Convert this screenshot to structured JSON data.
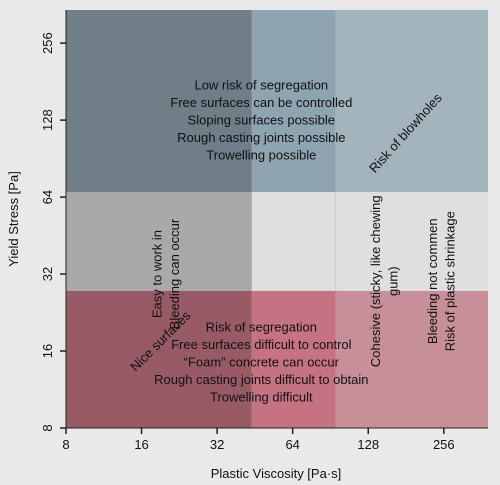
{
  "chart_data": {
    "type": "region",
    "x_axis": {
      "label": "Plastic Viscosity [Pa·s]",
      "scale": "log2",
      "ticks": [
        8,
        16,
        32,
        64,
        128,
        256
      ],
      "range": [
        8,
        384
      ]
    },
    "y_axis": {
      "label": "Yield Stress [Pa]",
      "scale": "log2",
      "ticks": [
        8,
        16,
        32,
        64,
        128,
        256
      ],
      "range": [
        8,
        345
      ]
    },
    "regions": [
      {
        "x": [
          8,
          44
        ],
        "y": [
          67,
          345
        ],
        "color": "#6c7b85",
        "opacity": 0.98
      },
      {
        "x": [
          44,
          95
        ],
        "y": [
          67,
          345
        ],
        "color": "#8aa0ae",
        "opacity": 0.95
      },
      {
        "x": [
          95,
          384
        ],
        "y": [
          67,
          345
        ],
        "color": "#9fb1bb",
        "opacity": 0.95
      },
      {
        "x": [
          8,
          44
        ],
        "y": [
          27.5,
          67
        ],
        "color": "#a9a9ab",
        "opacity": 1
      },
      {
        "x": [
          8,
          44
        ],
        "y": [
          8,
          27.5
        ],
        "color": "#94535f",
        "opacity": 0.95
      },
      {
        "x": [
          44,
          95
        ],
        "y": [
          8,
          27.5
        ],
        "color": "#c36d7c",
        "opacity": 0.95
      },
      {
        "x": [
          95,
          384
        ],
        "y": [
          8,
          27.5
        ],
        "color": "#c58b95",
        "opacity": 0.95
      }
    ],
    "annotations": [
      {
        "lines": [
          "Low risk of segregation",
          "Free surfaces can be controlled",
          "Sloping surfaces possible",
          "Rough casting joints possible",
          "Trowelling possible"
        ],
        "x": 48,
        "y": 128,
        "rotate": 0
      },
      {
        "lines": [
          "Risk of segregation",
          "Free surfaces difficult to control",
          "“Foam” concrete can occur",
          "Rough casting joints difficult to obtain",
          "Trowelling difficult"
        ],
        "x": 48,
        "y": 14.5,
        "rotate": 0
      },
      {
        "lines": [
          "Easy to work in",
          "Bleeding can occur"
        ],
        "x": 20,
        "y": 32,
        "rotate": -90
      },
      {
        "lines": [
          "Nice surfaces"
        ],
        "x": 19,
        "y": 17.5,
        "rotate": -45
      },
      {
        "lines": [
          "Risk of blowholes"
        ],
        "x": 180,
        "y": 114,
        "rotate": -48
      },
      {
        "lines": [
          "Cohesive (sticky, like chewing",
          "gum)"
        ],
        "x": 148,
        "y": 30,
        "rotate": -90
      },
      {
        "lines": [
          "Bleeding not commen",
          "Risk of plastic shrinkage"
        ],
        "x": 250,
        "y": 30,
        "rotate": -90
      }
    ]
  }
}
